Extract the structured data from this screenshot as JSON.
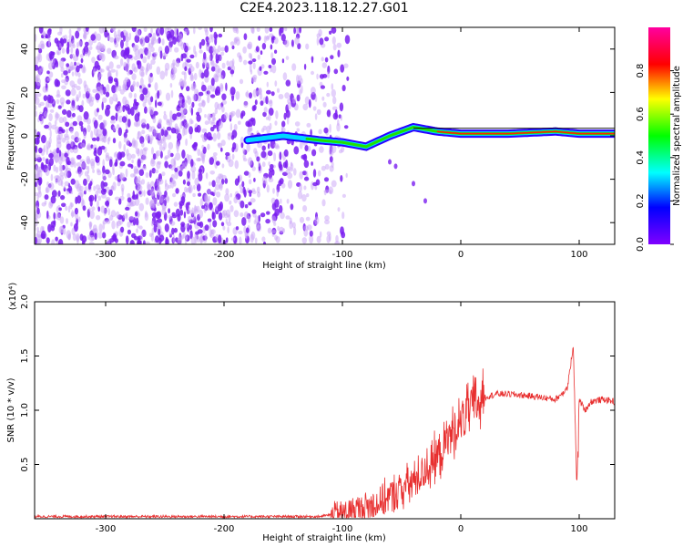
{
  "title": "C2E4.2023.118.12.27.G01",
  "colors": {
    "snr_line": "#e83030",
    "spectrogram_dots": "#7a2ef0",
    "colorbar": [
      "#8000ff",
      "#0000ff",
      "#00ffff",
      "#00ff00",
      "#ffff00",
      "#ff0000",
      "#ff00a0"
    ]
  },
  "chart_data": [
    {
      "type": "heatmap",
      "title": "",
      "xlabel": "Height of straight line (km)",
      "ylabel": "Frequency (Hz)",
      "xlim": [
        -360,
        130
      ],
      "ylim": [
        -50,
        50
      ],
      "xticks": [
        -300,
        -200,
        -100,
        0,
        100
      ],
      "yticks": [
        -40,
        -20,
        0,
        20,
        40
      ],
      "colorbar": {
        "label": "Normalized spectral amplitude",
        "range": [
          0,
          1
        ],
        "ticks": [
          "0.0",
          "0.2",
          "0.4",
          "0.6",
          "0.8"
        ]
      },
      "ridge": {
        "x": [
          -180,
          -150,
          -120,
          -100,
          -80,
          -60,
          -40,
          -20,
          0,
          40,
          80,
          100,
          130
        ],
        "freq_hz": [
          -2,
          0,
          -2,
          -3,
          -5,
          0,
          4,
          2,
          1,
          1,
          2,
          1,
          1
        ]
      }
    },
    {
      "type": "line",
      "title": "",
      "xlabel": "Height of straight line (km)",
      "ylabel": "SNR (10 * v/v)",
      "yscale_label": "(x10⁴)",
      "xlim": [
        -360,
        130
      ],
      "ylim": [
        0,
        2.0
      ],
      "xticks": [
        -300,
        -200,
        -100,
        0,
        100
      ],
      "yticks": [
        "0.5",
        "1.0",
        "1.5",
        "2.0"
      ],
      "series": [
        {
          "x": [
            -360,
            -300,
            -200,
            -120,
            -100,
            -80,
            -60,
            -40,
            -20,
            -10,
            0,
            10,
            20,
            30,
            40,
            60,
            80,
            90,
            95,
            98,
            100,
            105,
            110,
            120,
            130
          ],
          "y": [
            0.02,
            0.02,
            0.02,
            0.02,
            0.05,
            0.1,
            0.2,
            0.35,
            0.55,
            0.75,
            0.9,
            1.05,
            1.12,
            1.15,
            1.15,
            1.13,
            1.1,
            1.2,
            1.6,
            0.3,
            1.1,
            1.0,
            1.08,
            1.1,
            1.08
          ]
        }
      ]
    }
  ]
}
